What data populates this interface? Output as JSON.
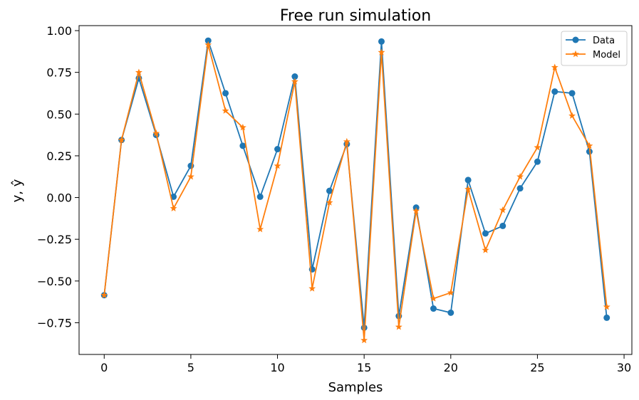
{
  "chart_data": {
    "type": "line",
    "title": "Free run simulation",
    "xlabel": "Samples",
    "ylabel": "y, ŷ",
    "xlim": [
      -1.45,
      30.45
    ],
    "ylim": [
      -0.94,
      1.03
    ],
    "xticks": [
      0,
      5,
      10,
      15,
      20,
      25,
      30
    ],
    "yticks": [
      -0.75,
      -0.5,
      -0.25,
      0.0,
      0.25,
      0.5,
      0.75,
      1.0
    ],
    "ytick_labels": [
      "−0.75",
      "−0.50",
      "−0.25",
      "0.00",
      "0.25",
      "0.50",
      "0.75",
      "1.00"
    ],
    "grid": false,
    "legend_position": "top-right",
    "x": [
      0,
      1,
      2,
      3,
      4,
      5,
      6,
      7,
      8,
      9,
      10,
      11,
      12,
      13,
      14,
      15,
      16,
      17,
      18,
      19,
      20,
      21,
      22,
      23,
      24,
      25,
      26,
      27,
      28,
      29
    ],
    "series": [
      {
        "name": "Data",
        "color": "#1f77b4",
        "marker": "circle",
        "values": [
          -0.585,
          0.345,
          0.715,
          0.375,
          0.005,
          0.19,
          0.94,
          0.625,
          0.31,
          0.005,
          0.29,
          0.725,
          -0.43,
          0.04,
          0.32,
          -0.78,
          0.935,
          -0.71,
          -0.06,
          -0.665,
          -0.69,
          0.105,
          -0.215,
          -0.17,
          0.055,
          0.215,
          0.635,
          0.625,
          0.275,
          -0.72
        ]
      },
      {
        "name": "Model",
        "color": "#ff7f0e",
        "marker": "star",
        "values": [
          -0.585,
          0.345,
          0.75,
          0.385,
          -0.065,
          0.125,
          0.915,
          0.52,
          0.42,
          -0.19,
          0.19,
          0.695,
          -0.545,
          -0.03,
          0.335,
          -0.855,
          0.87,
          -0.775,
          -0.08,
          -0.605,
          -0.57,
          0.05,
          -0.315,
          -0.075,
          0.125,
          0.3,
          0.78,
          0.49,
          0.31,
          -0.655
        ]
      }
    ]
  }
}
